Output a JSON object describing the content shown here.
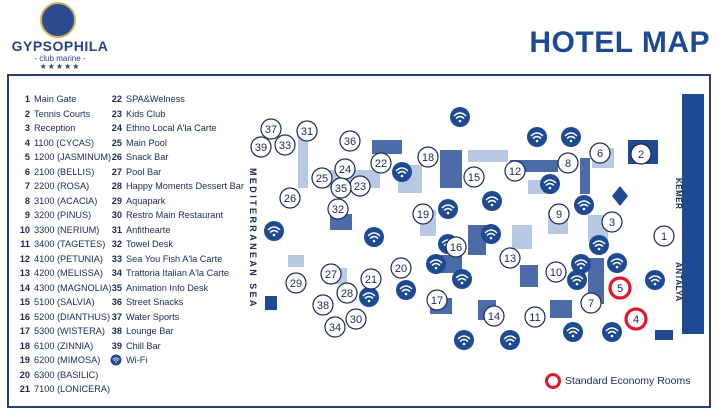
{
  "brand": {
    "name": "GYPSOPHILA",
    "subtitle": "- club marine -",
    "stars": "★★★★★"
  },
  "title": "HOTEL MAP",
  "legend_col1": [
    {
      "n": "1",
      "label": "Main Gate"
    },
    {
      "n": "2",
      "label": "Tennis Courts"
    },
    {
      "n": "3",
      "label": "Reception"
    },
    {
      "n": "4",
      "label": "1100 (CYCAS)"
    },
    {
      "n": "5",
      "label": "1200 (JASMINUM)"
    },
    {
      "n": "6",
      "label": "2100 (BELLIS)"
    },
    {
      "n": "7",
      "label": "2200 (ROSA)"
    },
    {
      "n": "8",
      "label": "3100 (ACACIA)"
    },
    {
      "n": "9",
      "label": "3200 (PINUS)"
    },
    {
      "n": "10",
      "label": "3300 (NERIUM)"
    },
    {
      "n": "11",
      "label": "3400 (TAGETES)"
    },
    {
      "n": "12",
      "label": "4100 (PETUNIA)"
    },
    {
      "n": "13",
      "label": "4200 (MELISSA)"
    },
    {
      "n": "14",
      "label": "4300 (MAGNOLIA)"
    },
    {
      "n": "15",
      "label": "5100 (SALVIA)"
    },
    {
      "n": "16",
      "label": "5200 (DIANTHUS)"
    },
    {
      "n": "17",
      "label": "5300 (WISTERA)"
    },
    {
      "n": "18",
      "label": "6100 (ZINNIA)"
    },
    {
      "n": "19",
      "label": "6200 (MIMOSA)"
    },
    {
      "n": "20",
      "label": "6300 (BASILIC)"
    },
    {
      "n": "21",
      "label": "7100 (LONICERA)"
    }
  ],
  "legend_col2": [
    {
      "n": "22",
      "label": "SPA&Welness"
    },
    {
      "n": "23",
      "label": "Kids Club"
    },
    {
      "n": "24",
      "label": "Ethno Local A'la Carte"
    },
    {
      "n": "25",
      "label": "Main Pool"
    },
    {
      "n": "26",
      "label": "Snack Bar"
    },
    {
      "n": "27",
      "label": "Pool Bar"
    },
    {
      "n": "28",
      "label": "Happy Moments Dessert Bar"
    },
    {
      "n": "29",
      "label": "Aquapark"
    },
    {
      "n": "30",
      "label": "Restro Main Restaurant"
    },
    {
      "n": "31",
      "label": "Anfithearte"
    },
    {
      "n": "32",
      "label": "Towel Desk"
    },
    {
      "n": "33",
      "label": "Sea You Fish A'la Carte"
    },
    {
      "n": "34",
      "label": "Trattoria Italian A'la Carte"
    },
    {
      "n": "35",
      "label": "Animation Info Desk"
    },
    {
      "n": "36",
      "label": "Street Snacks"
    },
    {
      "n": "37",
      "label": "Water Sports"
    },
    {
      "n": "38",
      "label": "Lounge Bar"
    },
    {
      "n": "39",
      "label": "Chill Bar"
    }
  ],
  "wifi_label": "Wi-Fi",
  "sea_label": "MEDITERRANEAN SEA",
  "kemer_label": "KEMER",
  "antalya_label": "ANTALYA",
  "standard_label": "Standard Economy Rooms",
  "colors": {
    "navy": "#1b2a55",
    "blue": "#1e4a93",
    "building": "#4a6ba8",
    "light": "#b9c8e2",
    "red": "#e0182d"
  },
  "map_markers": [
    {
      "n": "1",
      "highlight": false
    },
    {
      "n": "2",
      "highlight": false
    },
    {
      "n": "3",
      "highlight": false
    },
    {
      "n": "4",
      "highlight": true
    },
    {
      "n": "5",
      "highlight": true
    },
    {
      "n": "6",
      "highlight": false
    },
    {
      "n": "7",
      "highlight": false
    },
    {
      "n": "8",
      "highlight": false
    },
    {
      "n": "9",
      "highlight": false
    },
    {
      "n": "10",
      "highlight": false
    },
    {
      "n": "11",
      "highlight": false
    },
    {
      "n": "12",
      "highlight": false
    },
    {
      "n": "13",
      "highlight": false
    },
    {
      "n": "14",
      "highlight": false
    },
    {
      "n": "15",
      "highlight": false
    },
    {
      "n": "16",
      "highlight": false
    },
    {
      "n": "17",
      "highlight": false
    },
    {
      "n": "18",
      "highlight": false
    },
    {
      "n": "19",
      "highlight": false
    },
    {
      "n": "20",
      "highlight": false
    },
    {
      "n": "21",
      "highlight": false
    },
    {
      "n": "22",
      "highlight": false
    },
    {
      "n": "23",
      "highlight": false
    },
    {
      "n": "24",
      "highlight": false
    },
    {
      "n": "25",
      "highlight": false
    },
    {
      "n": "26",
      "highlight": false
    },
    {
      "n": "27",
      "highlight": false
    },
    {
      "n": "28",
      "highlight": false
    },
    {
      "n": "29",
      "highlight": false
    },
    {
      "n": "30",
      "highlight": false
    },
    {
      "n": "31",
      "highlight": false
    },
    {
      "n": "32",
      "highlight": false
    },
    {
      "n": "33",
      "highlight": false
    },
    {
      "n": "34",
      "highlight": false
    },
    {
      "n": "35",
      "highlight": false
    },
    {
      "n": "36",
      "highlight": false
    },
    {
      "n": "37",
      "highlight": false
    },
    {
      "n": "38",
      "highlight": false
    },
    {
      "n": "39",
      "highlight": false
    }
  ]
}
